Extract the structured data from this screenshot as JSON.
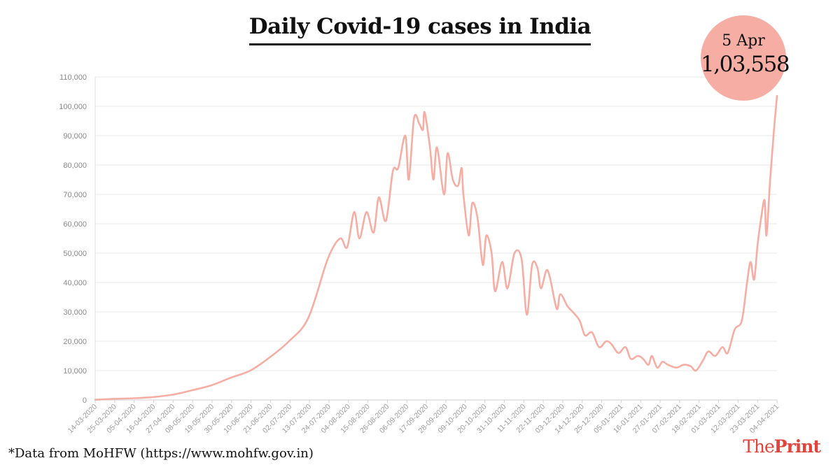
{
  "title": "Daily Covid-19 cases in India",
  "callout": {
    "date": "5 Apr",
    "value": "1,03,558"
  },
  "source": "*Data from MoHFW (https://www.mohfw.gov.in)",
  "logo": {
    "part1": "The",
    "part2": "Print"
  },
  "colors": {
    "line": "#f6aea4",
    "callout": "#f6aea4",
    "logo": "#e2433b",
    "grid": "#e8e8e8"
  },
  "chart_data": {
    "type": "line",
    "title": "Daily Covid-19 cases in India",
    "xlabel": "",
    "ylabel": "",
    "ylim": [
      0,
      110000
    ],
    "yticks": [
      0,
      10000,
      20000,
      30000,
      40000,
      50000,
      60000,
      70000,
      80000,
      90000,
      100000,
      110000
    ],
    "ytick_labels": [
      "0",
      "10,000",
      "20,000",
      "30,000",
      "40,000",
      "50,000",
      "60,000",
      "70,000",
      "80,000",
      "90,000",
      "100,000",
      "110,000"
    ],
    "xtick_labels": [
      "14-03-2020",
      "25-03-2020",
      "05-04-2020",
      "16-04-2020",
      "27-04-2020",
      "08-05-2020",
      "19-05-2020",
      "30-05-2020",
      "10-06-2020",
      "21-06-2020",
      "02-07-2020",
      "13-07-2020",
      "24-07-2020",
      "04-08-2020",
      "15-08-2020",
      "26-08-2020",
      "06-09-2020",
      "17-09-2020",
      "28-09-2020",
      "09-10-2020",
      "20-10-2020",
      "31-10-2020",
      "11-11-2020",
      "22-11-2020",
      "03-12-2020",
      "14-12-2020",
      "25-12-2020",
      "05-01-2021",
      "16-01-2021",
      "27-01-2021",
      "07-02-2021",
      "18-02-2021",
      "01-03-2021",
      "12-03-2021",
      "23-03-2021",
      "04-04-2021"
    ],
    "grid": "horizontal",
    "series": [
      {
        "x": [
          "14-03-2020",
          "25-03-2020",
          "05-04-2020",
          "16-04-2020",
          "27-04-2020",
          "08-05-2020",
          "19-05-2020",
          "30-05-2020",
          "10-06-2020",
          "21-06-2020",
          "02-07-2020",
          "13-07-2020",
          "24-07-2020",
          "31-07-2020",
          "04-08-2020",
          "08-08-2020",
          "11-08-2020",
          "15-08-2020",
          "19-08-2020",
          "22-08-2020",
          "26-08-2020",
          "30-08-2020",
          "02-09-2020",
          "06-09-2020",
          "08-09-2020",
          "11-09-2020",
          "14-09-2020",
          "16-09-2020",
          "17-09-2020",
          "20-09-2020",
          "22-09-2020",
          "24-09-2020",
          "28-09-2020",
          "30-09-2020",
          "03-10-2020",
          "06-10-2020",
          "08-10-2020",
          "09-10-2020",
          "12-10-2020",
          "14-10-2020",
          "17-10-2020",
          "20-10-2020",
          "22-10-2020",
          "25-10-2020",
          "27-10-2020",
          "31-10-2020",
          "03-11-2020",
          "07-11-2020",
          "11-11-2020",
          "14-11-2020",
          "17-11-2020",
          "20-11-2020",
          "22-11-2020",
          "25-11-2020",
          "27-11-2020",
          "01-12-2020",
          "03-12-2020",
          "07-12-2020",
          "10-12-2020",
          "14-12-2020",
          "17-12-2020",
          "21-12-2020",
          "25-12-2020",
          "29-12-2020",
          "01-01-2021",
          "05-01-2021",
          "09-01-2021",
          "12-01-2021",
          "16-01-2021",
          "19-01-2021",
          "22-01-2021",
          "24-01-2021",
          "27-01-2021",
          "30-01-2021",
          "02-02-2021",
          "07-02-2021",
          "11-02-2021",
          "15-02-2021",
          "18-02-2021",
          "22-02-2021",
          "25-02-2021",
          "01-03-2021",
          "05-03-2021",
          "08-03-2021",
          "12-03-2021",
          "16-03-2021",
          "19-03-2021",
          "21-03-2021",
          "23-03-2021",
          "25-03-2021",
          "27-03-2021",
          "29-03-2021",
          "30-03-2021",
          "01-04-2021",
          "03-04-2021",
          "05-04-2021"
        ],
        "values": [
          80,
          400,
          600,
          1000,
          1800,
          3300,
          5000,
          7600,
          10000,
          14500,
          20000,
          28000,
          48000,
          55000,
          52000,
          64000,
          55000,
          64000,
          57000,
          69000,
          61000,
          78000,
          79000,
          90000,
          75000,
          96000,
          94000,
          92000,
          98000,
          86000,
          75000,
          86000,
          70000,
          84000,
          75000,
          73000,
          79000,
          70000,
          56000,
          67000,
          62000,
          46000,
          56000,
          50000,
          37000,
          47000,
          38000,
          50000,
          48000,
          29000,
          46000,
          45000,
          38000,
          44000,
          42000,
          31000,
          36000,
          32000,
          30000,
          27000,
          22000,
          23000,
          18000,
          20000,
          19000,
          16000,
          18000,
          14000,
          15000,
          14000,
          12000,
          15000,
          11000,
          13000,
          12000,
          11000,
          12000,
          11500,
          10000,
          13500,
          16500,
          15000,
          18000,
          16000,
          24000,
          27000,
          40000,
          47000,
          41000,
          53000,
          62000,
          68000,
          56000,
          74000,
          90000,
          103558
        ]
      }
    ]
  }
}
